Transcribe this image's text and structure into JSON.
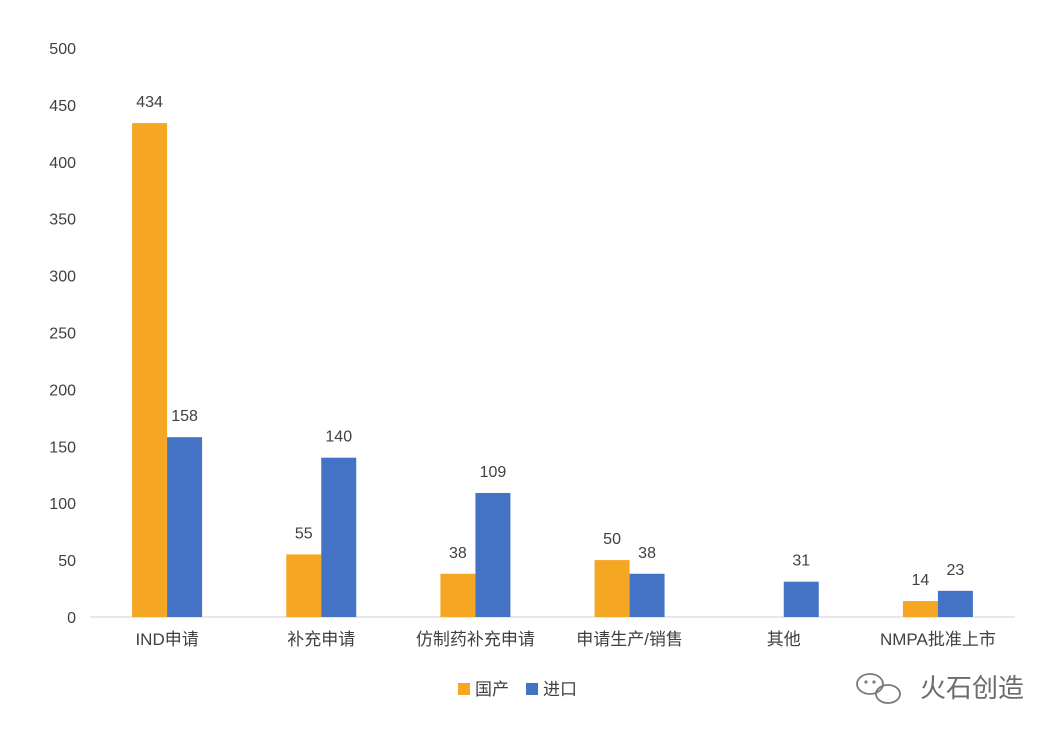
{
  "chart_data": {
    "type": "bar",
    "categories": [
      "IND申请",
      "补充申请",
      "仿制药补充申请",
      "申请生产/销售",
      "其他",
      "NMPA批准上市"
    ],
    "series": [
      {
        "name": "国产",
        "color": "#F5A623",
        "values": [
          434,
          55,
          38,
          50,
          null,
          14
        ]
      },
      {
        "name": "进口",
        "color": "#4472C4",
        "values": [
          158,
          140,
          109,
          38,
          31,
          23
        ]
      }
    ],
    "yticks": [
      0,
      50,
      100,
      150,
      200,
      250,
      300,
      350,
      400,
      450,
      500
    ],
    "ylim": [
      0,
      500
    ],
    "grid": false,
    "legend": "bottom-center",
    "title": "",
    "xlabel": "",
    "ylabel": ""
  },
  "watermark": {
    "text": "火石创造",
    "icon": "wechat-bubble-icon"
  }
}
